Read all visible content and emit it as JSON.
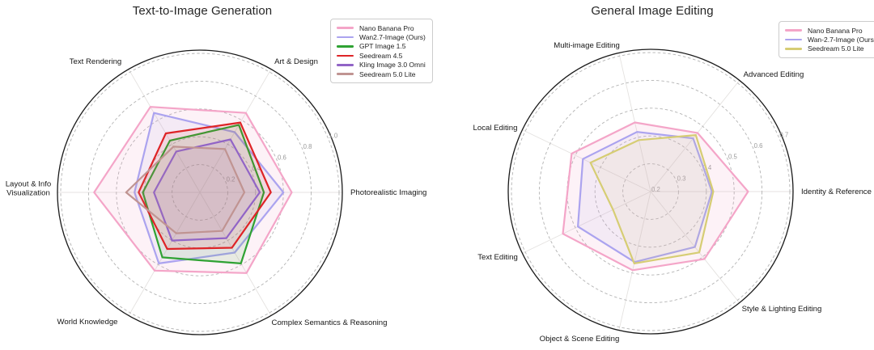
{
  "page": {
    "background": "#ffffff"
  },
  "chart_data": [
    {
      "type": "radar",
      "title": "Text-to-Image Generation",
      "axes": [
        "Photorealistic Imaging",
        "Art & Design",
        "Text Rendering",
        "Layout & Info\nVisualization",
        "World Knowledge",
        "Complex Semantics & Reasoning"
      ],
      "axis_layout": "6 spokes counterclockwise starting at right (0°, 60°, 120°, 180°, 240°, 300°)",
      "r_min": 0.0,
      "r_max": 1.0,
      "ticks": [
        "0.2",
        "0.4",
        "0.6",
        "0.8",
        "1.0"
      ],
      "grid": "dashed concentric circles, solid black outer circle",
      "legend_position": "top-right",
      "series": [
        {
          "name": "Nano Banana Pro",
          "color": "#F4A5C8",
          "values": [
            0.66,
            0.66,
            0.71,
            0.76,
            0.65,
            0.67
          ]
        },
        {
          "name": "Wan2.7-Image (Ours)",
          "color": "#ABA3EF",
          "values": [
            0.6,
            0.5,
            0.66,
            0.47,
            0.59,
            0.5
          ]
        },
        {
          "name": "GPT Image 1.5",
          "color": "#2FA233",
          "values": [
            0.46,
            0.56,
            0.43,
            0.41,
            0.54,
            0.59
          ]
        },
        {
          "name": "Seedream 4.5",
          "color": "#DE2427",
          "values": [
            0.51,
            0.58,
            0.49,
            0.44,
            0.47,
            0.46
          ]
        },
        {
          "name": "Kling Image 3.0 Omni",
          "color": "#9164C6",
          "values": [
            0.43,
            0.44,
            0.34,
            0.33,
            0.4,
            0.38
          ]
        },
        {
          "name": "Seedream 5.0 Lite",
          "color": "#C09492",
          "values": [
            0.32,
            0.36,
            0.38,
            0.53,
            0.34,
            0.32
          ]
        }
      ]
    },
    {
      "type": "radar",
      "title": "General Image Editing",
      "axes": [
        "Identity & Reference",
        "Advanced Editing",
        "Multi-image Editing",
        "Local Editing",
        "Text Editing",
        "Object & Scene Editing",
        "Style & Lighting Editing"
      ],
      "axis_layout": "7 spokes counterclockwise starting at right (every 51.43°)",
      "r_min": 0.2,
      "r_max": 0.7,
      "ticks": [
        "0.2",
        "0.3",
        "0.4",
        "0.5",
        "0.6",
        "0.7"
      ],
      "grid": "dashed concentric circles, solid black outer circle",
      "legend_position": "top-right",
      "series": [
        {
          "name": "Nano Banana Pro",
          "color": "#F4A5C8",
          "values": [
            0.55,
            0.47,
            0.455,
            0.515,
            0.55,
            0.49,
            0.51
          ]
        },
        {
          "name": "Wan-2.7-Image (Ours)",
          "color": "#ABA3EF",
          "values": [
            0.42,
            0.445,
            0.42,
            0.47,
            0.49,
            0.46,
            0.455
          ]
        },
        {
          "name": "Seedream 5.0 Lite",
          "color": "#D6CD74",
          "values": [
            0.425,
            0.46,
            0.39,
            0.44,
            0.35,
            0.465,
            0.48
          ]
        }
      ]
    }
  ]
}
